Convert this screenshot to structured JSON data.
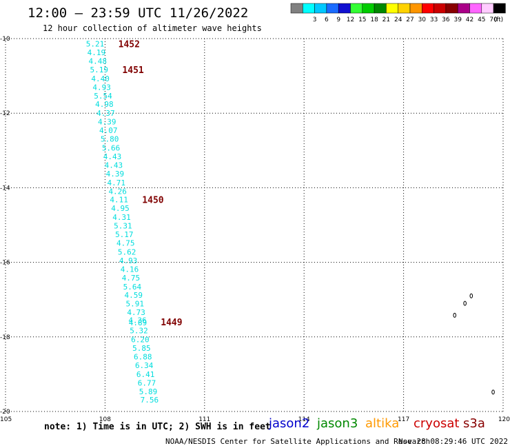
{
  "header": {
    "title": "12:00 – 23:59 UTC 11/26/2022",
    "subtitle": "12 hour collection of altimeter wave heights"
  },
  "legend": {
    "unit": "(ft)",
    "swatches": [
      {
        "color": "#808080",
        "label": ""
      },
      {
        "color": "#00ffff",
        "label": "3"
      },
      {
        "color": "#00c8ff",
        "label": "6"
      },
      {
        "color": "#1a6bff",
        "label": "9"
      },
      {
        "color": "#1010d0",
        "label": "12"
      },
      {
        "color": "#33ff33",
        "label": "15"
      },
      {
        "color": "#00cc00",
        "label": "18"
      },
      {
        "color": "#008800",
        "label": "21"
      },
      {
        "color": "#ffff00",
        "label": "24"
      },
      {
        "color": "#ffd200",
        "label": "27"
      },
      {
        "color": "#ff9600",
        "label": "30"
      },
      {
        "color": "#ff0000",
        "label": "33"
      },
      {
        "color": "#cc0000",
        "label": "36"
      },
      {
        "color": "#880000",
        "label": "39"
      },
      {
        "color": "#aa0088",
        "label": "42"
      },
      {
        "color": "#ff66ff",
        "label": "45"
      },
      {
        "color": "#ffccff",
        "label": "70"
      },
      {
        "color": "#000000",
        "label": ""
      }
    ]
  },
  "map": {
    "lon_range": [
      105,
      120
    ],
    "lat_range": [
      -20,
      -10
    ],
    "lat_ticks": [
      "-10",
      "-12",
      "-14",
      "-16",
      "-18",
      "-20"
    ],
    "lon_ticks": [
      "105",
      "108",
      "111",
      "114",
      "117",
      "120"
    ],
    "grid_color": "#000000",
    "wave_color": "#00dddd",
    "time_color": "#800000",
    "observations": [
      {
        "lat": -10.14,
        "lon": 107.7,
        "swh": "5.21"
      },
      {
        "lat": -10.37,
        "lon": 107.74,
        "swh": "4.19"
      },
      {
        "lat": -10.6,
        "lon": 107.78,
        "swh": "4.48"
      },
      {
        "lat": -10.83,
        "lon": 107.82,
        "swh": "5.19"
      },
      {
        "lat": -11.07,
        "lon": 107.86,
        "swh": "4.40"
      },
      {
        "lat": -11.3,
        "lon": 107.9,
        "swh": "4.93"
      },
      {
        "lat": -11.53,
        "lon": 107.94,
        "swh": "5.54"
      },
      {
        "lat": -11.76,
        "lon": 107.98,
        "swh": "4.98"
      },
      {
        "lat": -12.0,
        "lon": 108.02,
        "swh": "4.37"
      },
      {
        "lat": -12.23,
        "lon": 108.06,
        "swh": "4.39"
      },
      {
        "lat": -12.46,
        "lon": 108.1,
        "swh": "4.07"
      },
      {
        "lat": -12.69,
        "lon": 108.14,
        "swh": "5.80"
      },
      {
        "lat": -12.93,
        "lon": 108.18,
        "swh": "5.66"
      },
      {
        "lat": -13.16,
        "lon": 108.22,
        "swh": "4.43"
      },
      {
        "lat": -13.39,
        "lon": 108.26,
        "swh": "4.43"
      },
      {
        "lat": -13.62,
        "lon": 108.3,
        "swh": "4.39"
      },
      {
        "lat": -13.86,
        "lon": 108.34,
        "swh": "4.71"
      },
      {
        "lat": -14.09,
        "lon": 108.38,
        "swh": "4.26"
      },
      {
        "lat": -14.32,
        "lon": 108.42,
        "swh": "4.11"
      },
      {
        "lat": -14.55,
        "lon": 108.46,
        "swh": "4.95"
      },
      {
        "lat": -14.79,
        "lon": 108.5,
        "swh": "4.31"
      },
      {
        "lat": -15.02,
        "lon": 108.54,
        "swh": "5.31"
      },
      {
        "lat": -15.25,
        "lon": 108.58,
        "swh": "5.17"
      },
      {
        "lat": -15.48,
        "lon": 108.62,
        "swh": "4.75"
      },
      {
        "lat": -15.72,
        "lon": 108.66,
        "swh": "5.62"
      },
      {
        "lat": -15.95,
        "lon": 108.7,
        "swh": "4.93"
      },
      {
        "lat": -16.18,
        "lon": 108.74,
        "swh": "4.16"
      },
      {
        "lat": -16.41,
        "lon": 108.78,
        "swh": "4.75"
      },
      {
        "lat": -16.65,
        "lon": 108.82,
        "swh": "5.64"
      },
      {
        "lat": -16.88,
        "lon": 108.86,
        "swh": "4.59"
      },
      {
        "lat": -17.11,
        "lon": 108.9,
        "swh": "5.91"
      },
      {
        "lat": -17.34,
        "lon": 108.94,
        "swh": "4.73"
      },
      {
        "lat": -17.55,
        "lon": 108.98,
        "swh": "4.36"
      },
      {
        "lat": -17.62,
        "lon": 108.99,
        "swh": "4.89"
      },
      {
        "lat": -17.83,
        "lon": 109.02,
        "swh": "5.32"
      },
      {
        "lat": -18.07,
        "lon": 109.06,
        "swh": "6.20"
      },
      {
        "lat": -18.3,
        "lon": 109.1,
        "swh": "5.85"
      },
      {
        "lat": -18.53,
        "lon": 109.14,
        "swh": "6.88"
      },
      {
        "lat": -18.76,
        "lon": 109.18,
        "swh": "6.34"
      },
      {
        "lat": -19.0,
        "lon": 109.22,
        "swh": "6.41"
      },
      {
        "lat": -19.23,
        "lon": 109.26,
        "swh": "6.77"
      },
      {
        "lat": -19.46,
        "lon": 109.3,
        "swh": "5.89"
      },
      {
        "lat": -19.69,
        "lon": 109.34,
        "swh": "7.56"
      }
    ],
    "time_labels": [
      {
        "lat": -10.14,
        "lon": 108.4,
        "label": "1452"
      },
      {
        "lat": -10.83,
        "lon": 108.52,
        "label": "1451"
      },
      {
        "lat": -14.32,
        "lon": 109.12,
        "label": "1450"
      },
      {
        "lat": -17.6,
        "lon": 109.68,
        "label": "1449"
      }
    ],
    "islands": [
      {
        "lat": -17.42,
        "lon": 118.54
      },
      {
        "lat": -17.1,
        "lon": 118.85
      },
      {
        "lat": -16.9,
        "lon": 119.04
      },
      {
        "lat": -19.48,
        "lon": 119.7
      }
    ]
  },
  "footer": {
    "note": "note:  1) Time is in UTC; 2) SWH is in feet",
    "satellites": [
      {
        "name": "jason2",
        "color": "#0000cc"
      },
      {
        "name": "jason3",
        "color": "#008800"
      },
      {
        "name": "altika",
        "color": "#ff9900"
      },
      {
        "name": "cryosat",
        "color": "#cc0000"
      },
      {
        "name": "s3a",
        "color": "#880000"
      }
    ],
    "credit": "NOAA/NESDIS Center for Satellite Applications and Research",
    "timestamp": "Nov 28 08:29:46 UTC 2022"
  }
}
